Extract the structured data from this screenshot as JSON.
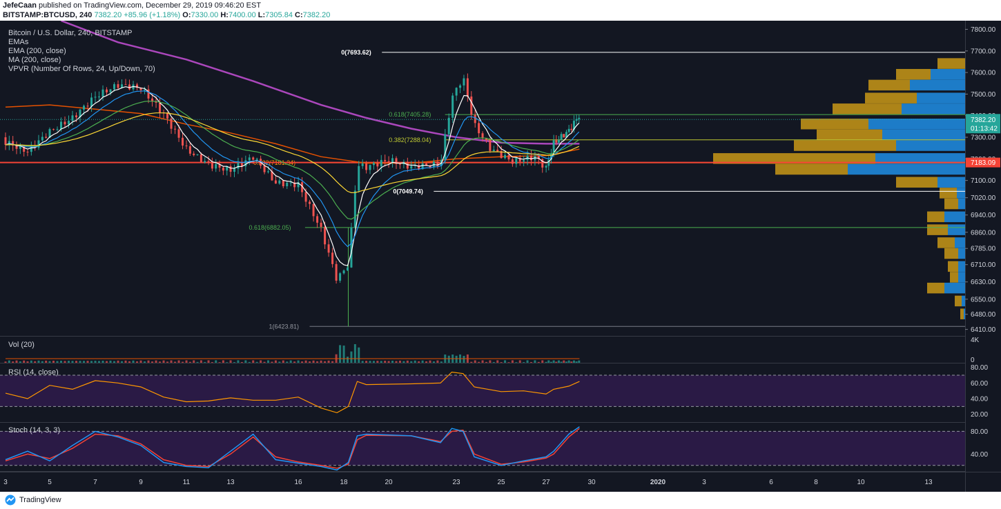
{
  "header": {
    "author": "JefeCaan",
    "published": " published on TradingView.com, December 29, 2019 09:46:20 EST",
    "symbol": "BITSTAMP:BTCUSD, 240",
    "last": "7382.20",
    "change": "+85.96 (+1.18%)",
    "o_label": "O:",
    "o": "7330.00",
    "h_label": "H:",
    "h": "7400.00",
    "l_label": "L:",
    "l": "7305.84",
    "c_label": "C:",
    "c": "7382.20"
  },
  "legend": {
    "title": "Bitcoin / U.S. Dollar, 240, BITSTAMP",
    "items": [
      "EMAs",
      "EMA (200, close)",
      "MA (200, close)",
      "VPVR (Number Of Rows, 24, Up/Down, 70)"
    ]
  },
  "panes": {
    "vol_label": "Vol (20)",
    "rsi_label": "RSI (14, close)",
    "stoch_label": "Stoch (14, 3, 3)"
  },
  "footer": {
    "brand": "TradingView"
  },
  "colors": {
    "background": "#131722",
    "up": "#26a69a",
    "down": "#ef5350",
    "ema200": "#ab47bc",
    "ma200": "#e65100",
    "fib": "#4caf50",
    "support_line": "#f44336",
    "vpvr_up": "#2196f3",
    "vpvr_down": "#d4a017",
    "rsi_line": "#ff9800",
    "stoch_k": "#2196f3",
    "stoch_d": "#f44336"
  },
  "chart_data": [
    {
      "type": "candlestick",
      "title": "Bitcoin / U.S. Dollar, 240, BITSTAMP",
      "ylim": [
        6380,
        7840
      ],
      "y_ticks": [
        7800,
        7700,
        7600,
        7500,
        7400,
        7300,
        7200,
        7100,
        7020,
        6940,
        6860,
        6785,
        6710,
        6630,
        6550,
        6480,
        6410
      ],
      "y_tick_labels": [
        "7800.00",
        "7700.00",
        "7600.00",
        "7500.00",
        "7400.00",
        "7300.00",
        "7200.00",
        "7100.00",
        "7020.00",
        "6940.00",
        "6860.00",
        "6785.00",
        "6710.00",
        "6630.00",
        "6550.00",
        "6480.00",
        "6410.00"
      ],
      "x_tick_labels": [
        "3",
        "5",
        "7",
        "9",
        "11",
        "13",
        "16",
        "18",
        "20",
        "23",
        "25",
        "27",
        "30",
        "2020",
        "3",
        "6",
        "8",
        "10",
        "13"
      ],
      "x_ticks_day": [
        3,
        5,
        7,
        9,
        11,
        13,
        16,
        18,
        20,
        23,
        25,
        27,
        30,
        33,
        36,
        40,
        42,
        44,
        47
      ],
      "day_range": [
        3,
        29.2
      ],
      "price_labels": [
        {
          "value": 7382.2,
          "text": "7382.20",
          "sub": "01:13:42"
        },
        {
          "value": 7183.09,
          "text": "7183.09"
        }
      ],
      "key_points": [
        {
          "day": 3,
          "price": 7300
        },
        {
          "day": 4,
          "price": 7250
        },
        {
          "day": 5,
          "price": 7330
        },
        {
          "day": 6,
          "price": 7380
        },
        {
          "day": 7,
          "price": 7470
        },
        {
          "day": 8,
          "price": 7520
        },
        {
          "day": 9,
          "price": 7510
        },
        {
          "day": 10,
          "price": 7400
        },
        {
          "day": 11,
          "price": 7250
        },
        {
          "day": 12,
          "price": 7190
        },
        {
          "day": 13,
          "price": 7170
        },
        {
          "day": 14,
          "price": 7230
        },
        {
          "day": 15,
          "price": 7100
        },
        {
          "day": 16,
          "price": 7080
        },
        {
          "day": 17,
          "price": 6860
        },
        {
          "day": 17.7,
          "price": 6620
        },
        {
          "day": 18.2,
          "price": 6690
        },
        {
          "day": 18.6,
          "price": 7150
        },
        {
          "day": 19,
          "price": 7140
        },
        {
          "day": 20,
          "price": 7180
        },
        {
          "day": 21,
          "price": 7160
        },
        {
          "day": 22.3,
          "price": 7190
        },
        {
          "day": 22.8,
          "price": 7500
        },
        {
          "day": 23.3,
          "price": 7600
        },
        {
          "day": 23.8,
          "price": 7380
        },
        {
          "day": 24.5,
          "price": 7270
        },
        {
          "day": 25.5,
          "price": 7200
        },
        {
          "day": 26.5,
          "price": 7210
        },
        {
          "day": 27,
          "price": 7150
        },
        {
          "day": 27.5,
          "price": 7260
        },
        {
          "day": 28.5,
          "price": 7310
        },
        {
          "day": 29.2,
          "price": 7382
        }
      ],
      "ema200": [
        {
          "day": 5.5,
          "price": 7840
        },
        {
          "day": 8,
          "price": 7740
        },
        {
          "day": 11,
          "price": 7660
        },
        {
          "day": 14,
          "price": 7560
        },
        {
          "day": 17,
          "price": 7450
        },
        {
          "day": 19,
          "price": 7390
        },
        {
          "day": 21,
          "price": 7340
        },
        {
          "day": 23,
          "price": 7300
        },
        {
          "day": 25,
          "price": 7275
        },
        {
          "day": 27,
          "price": 7270
        },
        {
          "day": 29.2,
          "price": 7270
        }
      ],
      "ma200": [
        {
          "day": 3,
          "price": 7440
        },
        {
          "day": 5,
          "price": 7450
        },
        {
          "day": 7,
          "price": 7430
        },
        {
          "day": 9,
          "price": 7410
        },
        {
          "day": 11,
          "price": 7360
        },
        {
          "day": 13,
          "price": 7320
        },
        {
          "day": 15,
          "price": 7270
        },
        {
          "day": 17,
          "price": 7210
        },
        {
          "day": 19,
          "price": 7180
        },
        {
          "day": 21,
          "price": 7180
        },
        {
          "day": 23,
          "price": 7200
        },
        {
          "day": 25,
          "price": 7210
        },
        {
          "day": 27,
          "price": 7215
        },
        {
          "day": 29.2,
          "price": 7245
        }
      ],
      "horizontal_lines": [
        {
          "price": 7693.62,
          "label": "0(7693.62)",
          "color": "#ffffff",
          "day_start": 19.7
        },
        {
          "price": 7405.28,
          "label": "0.618(7405.28)",
          "color": "#4caf50",
          "day_start": 22.5
        },
        {
          "price": 7288.04,
          "label": "0.382(7288.04)",
          "color": "#c0ca33",
          "day_start": 22.5
        },
        {
          "price": 7181.34,
          "label": "0.382(7181.34)",
          "color": "#ff9800",
          "day_start": 16.5
        },
        {
          "price": 7183.09,
          "label": "",
          "color": "#f44336",
          "day_start": 3
        },
        {
          "price": 7049.74,
          "label": "0(7049.74)",
          "color": "#ffffff",
          "day_start": 22.0
        },
        {
          "price": 6882.05,
          "label": "0.618(6882.05)",
          "color": "#4caf50",
          "day_start": 16.3
        },
        {
          "price": 6423.81,
          "label": "1(6423.81)",
          "color": "#787b86",
          "day_start": 16.5
        }
      ],
      "vpvr": [
        {
          "price": 7640,
          "up": 40,
          "down": 0
        },
        {
          "price": 7590,
          "up": 50,
          "down": 50
        },
        {
          "price": 7540,
          "up": 60,
          "down": 80
        },
        {
          "price": 7480,
          "up": 75,
          "down": 70
        },
        {
          "price": 7430,
          "up": 100,
          "down": 92
        },
        {
          "price": 7360,
          "up": 98,
          "down": 140
        },
        {
          "price": 7310,
          "up": 95,
          "down": 120
        },
        {
          "price": 7260,
          "up": 148,
          "down": 100
        },
        {
          "price": 7200,
          "up": 235,
          "down": 130
        },
        {
          "price": 7150,
          "up": 105,
          "down": 170
        },
        {
          "price": 7090,
          "up": 60,
          "down": 40
        },
        {
          "price": 7040,
          "up": 25,
          "down": 12
        },
        {
          "price": 6990,
          "up": 20,
          "down": 10
        },
        {
          "price": 6930,
          "up": 25,
          "down": 30
        },
        {
          "price": 6870,
          "up": 30,
          "down": 25
        },
        {
          "price": 6810,
          "up": 25,
          "down": 15
        },
        {
          "price": 6760,
          "up": 20,
          "down": 10
        },
        {
          "price": 6700,
          "up": 15,
          "down": 10
        },
        {
          "price": 6650,
          "up": 12,
          "down": 10
        },
        {
          "price": 6600,
          "up": 25,
          "down": 30
        },
        {
          "price": 6540,
          "up": 10,
          "down": 5
        },
        {
          "price": 6480,
          "up": 5,
          "down": 2
        }
      ]
    },
    {
      "type": "bar",
      "title": "Vol (20)",
      "ylim": [
        0,
        4000
      ],
      "y_tick_labels": [
        "4K",
        "0"
      ]
    },
    {
      "type": "line",
      "title": "RSI (14, close)",
      "ylim": [
        10,
        85
      ],
      "y_tick_labels": [
        "80.00",
        "60.00",
        "40.00",
        "20.00"
      ],
      "bands": [
        70,
        30
      ],
      "points": [
        {
          "day": 3,
          "value": 47
        },
        {
          "day": 4,
          "value": 40
        },
        {
          "day": 5,
          "value": 57
        },
        {
          "day": 6,
          "value": 52
        },
        {
          "day": 7,
          "value": 63
        },
        {
          "day": 8,
          "value": 60
        },
        {
          "day": 9,
          "value": 55
        },
        {
          "day": 10,
          "value": 42
        },
        {
          "day": 11,
          "value": 36
        },
        {
          "day": 12,
          "value": 37
        },
        {
          "day": 13,
          "value": 41
        },
        {
          "day": 14,
          "value": 38
        },
        {
          "day": 15,
          "value": 38
        },
        {
          "day": 16,
          "value": 42
        },
        {
          "day": 17,
          "value": 28
        },
        {
          "day": 17.7,
          "value": 22
        },
        {
          "day": 18.2,
          "value": 30
        },
        {
          "day": 18.6,
          "value": 62
        },
        {
          "day": 19,
          "value": 58
        },
        {
          "day": 21,
          "value": 59
        },
        {
          "day": 22.3,
          "value": 60
        },
        {
          "day": 22.8,
          "value": 74
        },
        {
          "day": 23.3,
          "value": 72
        },
        {
          "day": 23.8,
          "value": 55
        },
        {
          "day": 25,
          "value": 49
        },
        {
          "day": 26,
          "value": 50
        },
        {
          "day": 27,
          "value": 46
        },
        {
          "day": 27.5,
          "value": 52
        },
        {
          "day": 28.5,
          "value": 56
        },
        {
          "day": 29.2,
          "value": 62
        }
      ]
    },
    {
      "type": "line",
      "title": "Stoch (14, 3, 3)",
      "ylim": [
        10,
        95
      ],
      "y_tick_labels": [
        "80.00",
        "40.00"
      ],
      "bands": [
        80,
        20
      ],
      "series": [
        {
          "points": [
            {
              "day": 3,
              "value": 30
            },
            {
              "day": 4,
              "value": 45
            },
            {
              "day": 5,
              "value": 28
            },
            {
              "day": 6,
              "value": 55
            },
            {
              "day": 7,
              "value": 80
            },
            {
              "day": 8,
              "value": 70
            },
            {
              "day": 9,
              "value": 55
            },
            {
              "day": 10,
              "value": 25
            },
            {
              "day": 11,
              "value": 18
            },
            {
              "day": 12,
              "value": 16
            },
            {
              "day": 13,
              "value": 45
            },
            {
              "day": 14,
              "value": 75
            },
            {
              "day": 15,
              "value": 30
            },
            {
              "day": 16,
              "value": 24
            },
            {
              "day": 17,
              "value": 18
            },
            {
              "day": 17.7,
              "value": 12
            },
            {
              "day": 18.2,
              "value": 25
            },
            {
              "day": 18.6,
              "value": 72
            },
            {
              "day": 19,
              "value": 75
            },
            {
              "day": 21,
              "value": 72
            },
            {
              "day": 22.3,
              "value": 60
            },
            {
              "day": 22.8,
              "value": 85
            },
            {
              "day": 23.3,
              "value": 80
            },
            {
              "day": 23.8,
              "value": 35
            },
            {
              "day": 25,
              "value": 20
            },
            {
              "day": 26,
              "value": 28
            },
            {
              "day": 27,
              "value": 35
            },
            {
              "day": 27.5,
              "value": 45
            },
            {
              "day": 28.5,
              "value": 75
            },
            {
              "day": 29.2,
              "value": 88
            }
          ]
        },
        {
          "points": [
            {
              "day": 3,
              "value": 28
            },
            {
              "day": 4,
              "value": 40
            },
            {
              "day": 5,
              "value": 32
            },
            {
              "day": 6,
              "value": 50
            },
            {
              "day": 7,
              "value": 75
            },
            {
              "day": 8,
              "value": 72
            },
            {
              "day": 9,
              "value": 58
            },
            {
              "day": 10,
              "value": 30
            },
            {
              "day": 11,
              "value": 20
            },
            {
              "day": 12,
              "value": 18
            },
            {
              "day": 13,
              "value": 40
            },
            {
              "day": 14,
              "value": 70
            },
            {
              "day": 15,
              "value": 35
            },
            {
              "day": 16,
              "value": 26
            },
            {
              "day": 17,
              "value": 20
            },
            {
              "day": 17.7,
              "value": 15
            },
            {
              "day": 18.2,
              "value": 22
            },
            {
              "day": 18.6,
              "value": 65
            },
            {
              "day": 19,
              "value": 73
            },
            {
              "day": 21,
              "value": 72
            },
            {
              "day": 22.3,
              "value": 62
            },
            {
              "day": 22.8,
              "value": 80
            },
            {
              "day": 23.3,
              "value": 82
            },
            {
              "day": 23.8,
              "value": 40
            },
            {
              "day": 25,
              "value": 22
            },
            {
              "day": 26,
              "value": 26
            },
            {
              "day": 27,
              "value": 33
            },
            {
              "day": 27.5,
              "value": 40
            },
            {
              "day": 28.5,
              "value": 70
            },
            {
              "day": 29.2,
              "value": 85
            }
          ]
        }
      ]
    }
  ]
}
